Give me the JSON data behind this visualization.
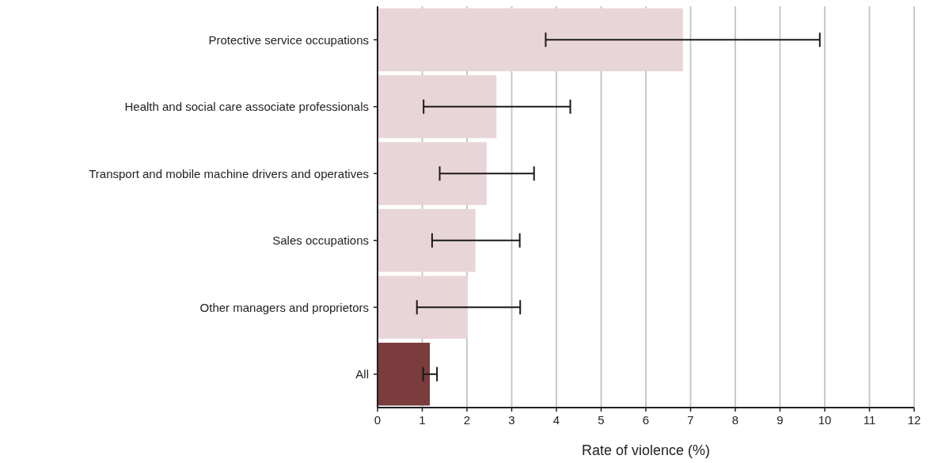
{
  "chart_data": {
    "type": "bar",
    "orientation": "horizontal",
    "xlabel": "Rate of violence (%)",
    "categories": [
      "Protective service occupations",
      "Health and social care associate professionals",
      "Transport and mobile machine drivers and operatives",
      "Sales occupations",
      "Other managers and proprietors",
      "All"
    ],
    "values": [
      6.83,
      2.66,
      2.44,
      2.19,
      2.02,
      1.17
    ],
    "colors": [
      "#e8d5d7",
      "#e8d5d7",
      "#e8d5d7",
      "#e8d5d7",
      "#e8d5d7",
      "#7a3c3c"
    ],
    "errors": [
      [
        3.76,
        9.89
      ],
      [
        1.03,
        4.31
      ],
      [
        1.39,
        3.5
      ],
      [
        1.22,
        3.18
      ],
      [
        0.88,
        3.19
      ],
      [
        1.02,
        1.33
      ]
    ],
    "xlim": [
      0,
      12
    ],
    "xticks": [
      0,
      1,
      2,
      3,
      4,
      5,
      6,
      7,
      8,
      9,
      10,
      11,
      12
    ],
    "grid": "x"
  }
}
